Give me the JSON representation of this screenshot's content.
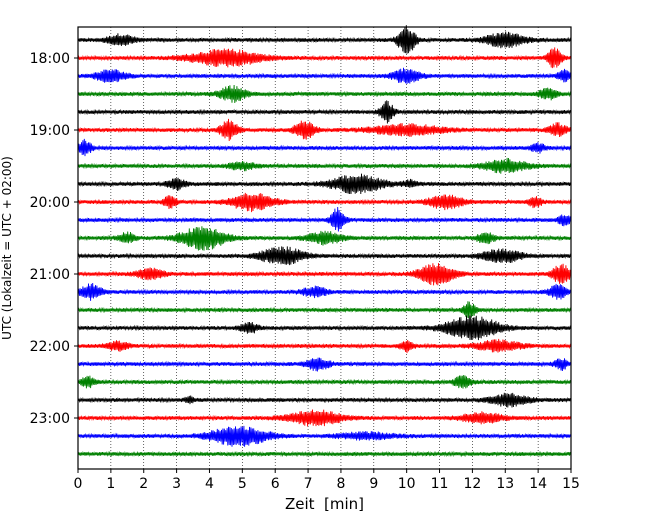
{
  "chart_data": {
    "type": "line",
    "title": "",
    "xlabel": "Zeit  [min]",
    "ylabel": "UTC (Lokalzeit = UTC + 02:00)",
    "xlim": [
      0,
      15
    ],
    "x_ticks": [
      "0",
      "1",
      "2",
      "3",
      "4",
      "5",
      "6",
      "7",
      "8",
      "9",
      "10",
      "11",
      "12",
      "13",
      "14",
      "15"
    ],
    "y_ticks": [
      "18:00",
      "19:00",
      "20:00",
      "21:00",
      "22:00",
      "23:00"
    ],
    "grid_x": true,
    "trace_start": "17:45",
    "trace_interval_min": 15,
    "trace_colors": [
      "#000000",
      "#ff0000",
      "#0000ff",
      "#008000"
    ],
    "traces": [
      {
        "time": "17:45",
        "events": [
          [
            1.3,
            0.6,
            1.0
          ],
          [
            10.0,
            0.4,
            2.6
          ],
          [
            13.0,
            0.9,
            1.3
          ]
        ]
      },
      {
        "time": "18:00",
        "events": [
          [
            4.5,
            1.6,
            1.5
          ],
          [
            14.5,
            0.3,
            2.0
          ]
        ]
      },
      {
        "time": "18:15",
        "events": [
          [
            1.0,
            0.7,
            1.1
          ],
          [
            10.0,
            0.6,
            1.4
          ],
          [
            14.8,
            0.3,
            1.0
          ]
        ]
      },
      {
        "time": "18:30",
        "events": [
          [
            4.7,
            0.6,
            1.4
          ],
          [
            14.3,
            0.4,
            1.0
          ]
        ]
      },
      {
        "time": "18:45",
        "events": [
          [
            9.4,
            0.3,
            2.0
          ]
        ]
      },
      {
        "time": "19:00",
        "events": [
          [
            4.6,
            0.4,
            1.8
          ],
          [
            6.9,
            0.5,
            1.6
          ],
          [
            10.0,
            1.6,
            1.0
          ],
          [
            14.6,
            0.4,
            1.2
          ]
        ]
      },
      {
        "time": "19:15",
        "events": [
          [
            0.2,
            0.3,
            1.4
          ],
          [
            14.0,
            0.3,
            0.8
          ]
        ]
      },
      {
        "time": "19:30",
        "events": [
          [
            5.0,
            0.6,
            0.7
          ],
          [
            13.0,
            1.0,
            1.2
          ]
        ]
      },
      {
        "time": "19:45",
        "events": [
          [
            3.0,
            0.4,
            1.0
          ],
          [
            8.5,
            1.2,
            1.7
          ],
          [
            10.1,
            0.3,
            0.6
          ]
        ]
      },
      {
        "time": "20:00",
        "events": [
          [
            2.8,
            0.3,
            1.1
          ],
          [
            5.3,
            1.0,
            1.6
          ],
          [
            11.2,
            0.8,
            1.3
          ],
          [
            13.9,
            0.3,
            1.0
          ]
        ]
      },
      {
        "time": "20:15",
        "events": [
          [
            7.9,
            0.3,
            2.2
          ],
          [
            14.8,
            0.3,
            0.9
          ]
        ]
      },
      {
        "time": "20:30",
        "events": [
          [
            1.5,
            0.4,
            0.9
          ],
          [
            3.8,
            1.0,
            2.2
          ],
          [
            7.5,
            0.8,
            1.1
          ],
          [
            12.4,
            0.4,
            1.0
          ]
        ]
      },
      {
        "time": "20:45",
        "events": [
          [
            6.2,
            1.0,
            1.6
          ],
          [
            12.9,
            0.9,
            1.2
          ]
        ]
      },
      {
        "time": "21:00",
        "events": [
          [
            2.2,
            0.6,
            1.0
          ],
          [
            10.9,
            0.8,
            2.0
          ],
          [
            14.7,
            0.4,
            1.8
          ]
        ]
      },
      {
        "time": "21:15",
        "events": [
          [
            0.4,
            0.5,
            1.4
          ],
          [
            7.2,
            0.6,
            0.9
          ],
          [
            14.6,
            0.4,
            1.3
          ]
        ]
      },
      {
        "time": "21:30",
        "events": [
          [
            11.9,
            0.3,
            1.4
          ]
        ]
      },
      {
        "time": "21:45",
        "events": [
          [
            5.2,
            0.4,
            1.0
          ],
          [
            12.0,
            1.2,
            2.2
          ]
        ]
      },
      {
        "time": "22:00",
        "events": [
          [
            1.2,
            0.5,
            0.8
          ],
          [
            10.0,
            0.3,
            1.0
          ],
          [
            12.8,
            1.0,
            1.0
          ]
        ]
      },
      {
        "time": "22:15",
        "events": [
          [
            7.3,
            0.5,
            1.2
          ],
          [
            14.7,
            0.3,
            1.0
          ]
        ]
      },
      {
        "time": "22:30",
        "events": [
          [
            0.3,
            0.3,
            1.0
          ],
          [
            11.7,
            0.4,
            1.0
          ]
        ]
      },
      {
        "time": "22:45",
        "events": [
          [
            3.4,
            0.2,
            0.7
          ],
          [
            13.1,
            0.9,
            1.1
          ]
        ]
      },
      {
        "time": "23:00",
        "events": [
          [
            7.2,
            1.2,
            1.4
          ],
          [
            12.3,
            0.9,
            1.0
          ]
        ]
      },
      {
        "time": "23:15",
        "events": [
          [
            4.9,
            1.3,
            1.8
          ],
          [
            8.8,
            1.3,
            0.6
          ]
        ]
      },
      {
        "time": "23:30",
        "events": []
      }
    ]
  }
}
